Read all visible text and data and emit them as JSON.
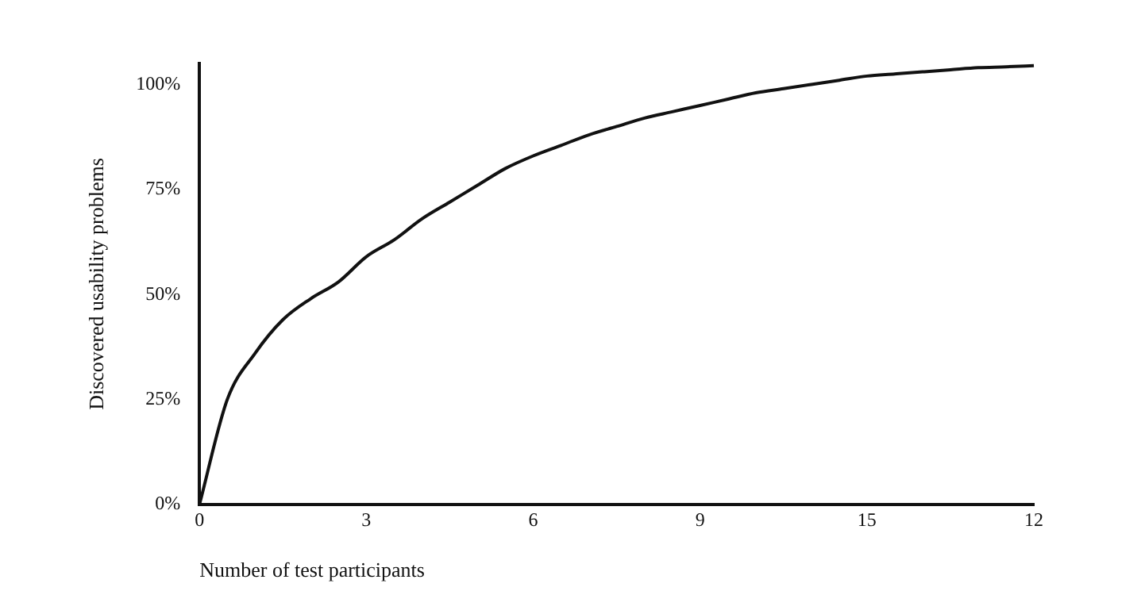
{
  "chart_data": {
    "type": "line",
    "xlabel": "Number of test participants",
    "ylabel": "Discovered usability problems",
    "categories": [
      "0",
      null,
      null,
      null,
      null,
      null,
      "3",
      null,
      null,
      null,
      null,
      null,
      "6",
      null,
      null,
      null,
      null,
      null,
      "9",
      null,
      null,
      null,
      null,
      null,
      "15",
      null,
      null,
      null,
      null,
      null,
      "12"
    ],
    "series": [
      {
        "color": "#111111",
        "values": [
          0,
          25,
          36,
          44,
          49,
          53,
          59,
          63,
          68,
          72,
          76,
          80,
          83,
          85.5,
          88,
          90,
          92,
          93.5,
          95,
          96.5,
          98,
          99,
          100,
          101,
          102,
          102.5,
          103,
          103.5,
          104,
          104.2,
          104.5
        ]
      }
    ],
    "ylim": [
      0,
      105
    ],
    "yticks": [
      {
        "value": 0,
        "label": "0%"
      },
      {
        "value": 25,
        "label": "25%"
      },
      {
        "value": 50,
        "label": "50%"
      },
      {
        "value": 75,
        "label": "75%"
      },
      {
        "value": 100,
        "label": "100%"
      }
    ],
    "grid": false,
    "legend": false,
    "marker": "none",
    "line_style": "solid"
  }
}
